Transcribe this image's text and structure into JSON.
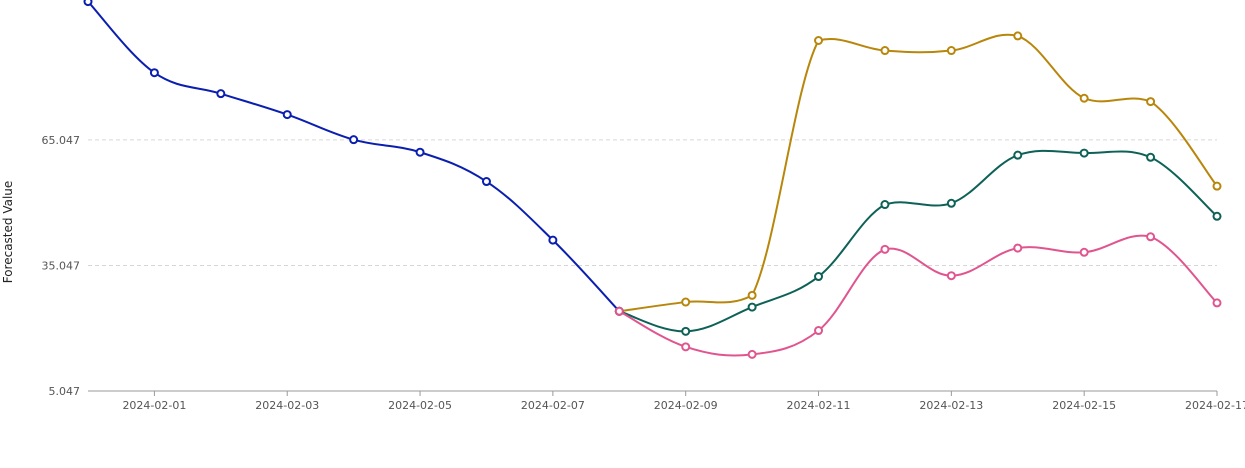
{
  "chart_data": {
    "type": "line",
    "ylabel": "Forecasted Value",
    "xlabel": "",
    "x_ticks": [
      "2024-02-01",
      "2024-02-03",
      "2024-02-05",
      "2024-02-07",
      "2024-02-09",
      "2024-02-11",
      "2024-02-13",
      "2024-02-15",
      "2024-02-17"
    ],
    "y_ticks": [
      "5.047",
      "35.047",
      "65.047"
    ],
    "ylim": [
      5.047,
      98
    ],
    "xlim": [
      "2024-01-31",
      "2024-02-17"
    ],
    "grid": "horizontal dashed",
    "series": [
      {
        "color": "#0a1fb0",
        "x": [
          "2024-01-31",
          "2024-02-01",
          "2024-02-02",
          "2024-02-03",
          "2024-02-04",
          "2024-02-05",
          "2024-02-06",
          "2024-02-07",
          "2024-02-08"
        ],
        "values": [
          98.1,
          81.1,
          76.1,
          71.1,
          65.1,
          62.1,
          55.1,
          41.1,
          24.1
        ]
      },
      {
        "color": "#b8860b",
        "x": [
          "2024-02-08",
          "2024-02-09",
          "2024-02-10",
          "2024-02-11",
          "2024-02-12",
          "2024-02-13",
          "2024-02-14",
          "2024-02-15",
          "2024-02-16",
          "2024-02-17"
        ],
        "values": [
          24.1,
          26.3,
          27.9,
          88.8,
          86.4,
          86.4,
          89.9,
          75.0,
          74.2,
          54.0
        ]
      },
      {
        "color": "#0d6157",
        "x": [
          "2024-02-08",
          "2024-02-09",
          "2024-02-10",
          "2024-02-11",
          "2024-02-12",
          "2024-02-13",
          "2024-02-14",
          "2024-02-15",
          "2024-02-16",
          "2024-02-17"
        ],
        "values": [
          24.1,
          19.3,
          25.1,
          32.4,
          49.6,
          49.9,
          61.4,
          61.9,
          60.9,
          46.8
        ]
      },
      {
        "color": "#e0558f",
        "x": [
          "2024-02-08",
          "2024-02-09",
          "2024-02-10",
          "2024-02-11",
          "2024-02-12",
          "2024-02-13",
          "2024-02-14",
          "2024-02-15",
          "2024-02-16",
          "2024-02-17"
        ],
        "values": [
          24.1,
          15.6,
          13.8,
          19.5,
          38.9,
          32.6,
          39.2,
          38.2,
          41.9,
          26.1
        ]
      }
    ]
  }
}
